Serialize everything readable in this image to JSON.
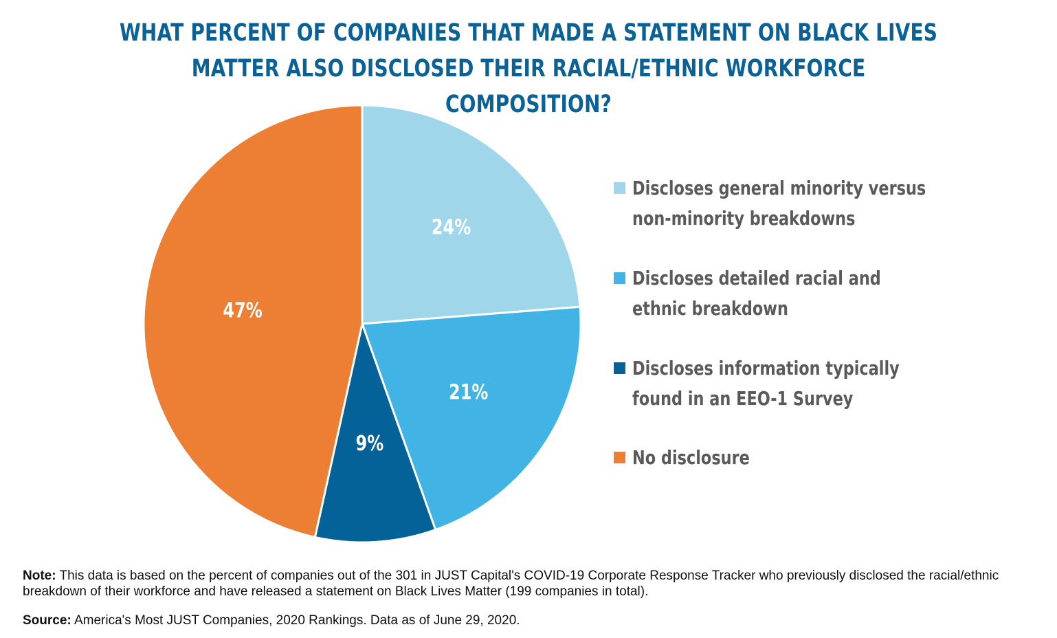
{
  "title": {
    "line1": "WHAT PERCENT OF COMPANIES THAT MADE A STATEMENT ON BLACK LIVES",
    "line2": "MATTER ALSO DISCLOSED THEIR RACIAL/ETHNIC WORKFORCE COMPOSITION?"
  },
  "chart_data": {
    "type": "pie",
    "title": "WHAT PERCENT OF COMPANIES THAT MADE A STATEMENT ON BLACK LIVES MATTER ALSO DISCLOSED THEIR RACIAL/ETHNIC WORKFORCE COMPOSITION?",
    "start": "12 o'clock, clockwise",
    "slices": [
      {
        "name": "Discloses general minority versus non-minority breakdowns",
        "value": 24,
        "label": "24%",
        "color": "#9fd6ea"
      },
      {
        "name": "Discloses detailed racial and ethnic breakdown",
        "value": 21,
        "label": "21%",
        "color": "#42b3e5"
      },
      {
        "name": "Discloses information typically found in an EEO-1 Survey",
        "value": 9,
        "label": "9%",
        "color": "#046298"
      },
      {
        "name": "No disclosure",
        "value": 47,
        "label": "47%",
        "color": "#ed7f35"
      }
    ],
    "legend_position": "right"
  },
  "legend": [
    {
      "line1": "Discloses general minority versus",
      "line2": "non-minority breakdowns"
    },
    {
      "line1": "Discloses detailed racial and",
      "line2": "ethnic breakdown"
    },
    {
      "line1": "Discloses information typically",
      "line2": "found in an EEO-1 Survey"
    },
    {
      "line1": "No disclosure",
      "line2": ""
    }
  ],
  "note": {
    "label": "Note:",
    "text": "This data is based on the percent of companies out of the 301 in JUST Capital's COVID-19 Corporate Response Tracker who previously disclosed the racial/ethnic breakdown of their workforce and have released a statement on Black Lives Matter (199 companies in total)."
  },
  "source": {
    "label": "Source:",
    "text": "America's Most JUST Companies, 2020 Rankings. Data as of June 29, 2020."
  }
}
